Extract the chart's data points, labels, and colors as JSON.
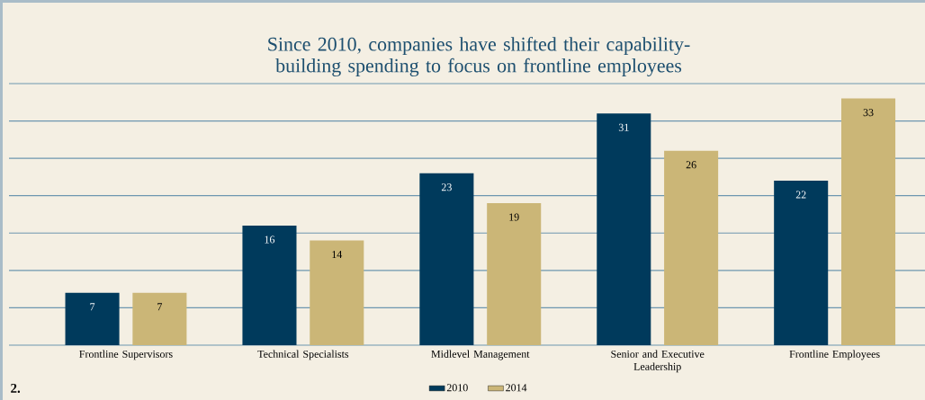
{
  "chart_data": {
    "type": "bar",
    "title": "Since 2010, companies have shifted their capability-building spending to focus on frontline employees",
    "categories": [
      "Frontline Supervisors",
      "Technical Specialists",
      "Midlevel Management",
      "Senior and Executive Leadership",
      "Frontline Employees"
    ],
    "series": [
      {
        "name": "2010",
        "color": "#003a5c",
        "values": [
          7,
          16,
          23,
          31,
          22
        ]
      },
      {
        "name": "2014",
        "color": "#cbb677",
        "values": [
          7,
          14,
          19,
          26,
          33
        ]
      }
    ],
    "ylim": [
      0,
      35
    ],
    "yticks": [
      {
        "value": 0,
        "label": null
      },
      {
        "value": 5,
        "label": null
      },
      {
        "value": 10,
        "label": null
      },
      {
        "value": 15,
        "label": null
      },
      {
        "value": 20,
        "label": null
      },
      {
        "value": 25,
        "label": null
      },
      {
        "value": 30,
        "label": null
      },
      {
        "value": 35,
        "label": null
      }
    ],
    "grid": "y",
    "tick_labels": "x",
    "legend": "bottom",
    "data_labels": true,
    "annotations": [
      "2."
    ]
  }
}
